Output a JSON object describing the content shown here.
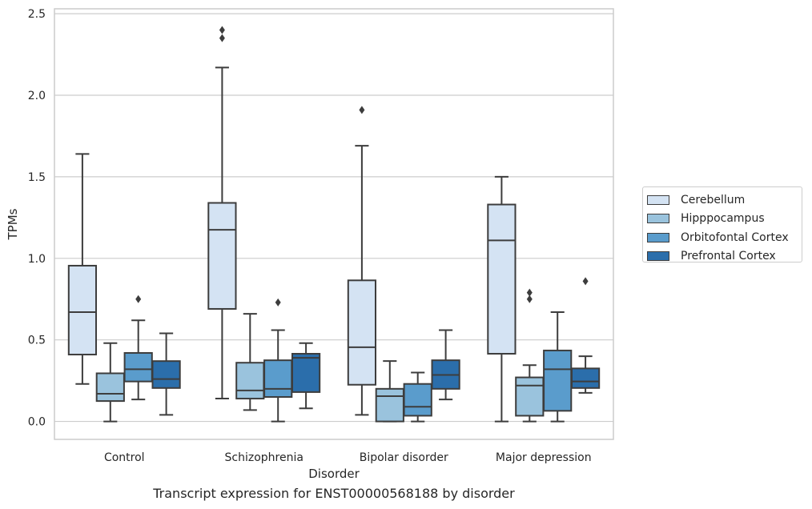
{
  "caption": "Transcript expression for ENST00000568188 by disorder",
  "chart_data": {
    "type": "boxplot",
    "title": "",
    "xlabel": "Disorder",
    "ylabel": "TPMs",
    "ylim": [
      -0.11,
      2.53
    ],
    "yticks": [
      0.0,
      0.5,
      1.0,
      1.5,
      2.0,
      2.5
    ],
    "ytick_labels": [
      "0.0",
      "0.5",
      "1.0",
      "1.5",
      "2.0",
      "2.5"
    ],
    "grid": "horizontal",
    "legend_position": "right",
    "categories": [
      "Control",
      "Schizophrenia",
      "Bipolar disorder",
      "Major depression"
    ],
    "series": [
      {
        "name": "Cerebellum",
        "color": "#d4e3f3",
        "boxes": [
          {
            "whislo": 0.23,
            "q1": 0.41,
            "med": 0.67,
            "q3": 0.955,
            "whishi": 1.64,
            "fliers": []
          },
          {
            "whislo": 0.14,
            "q1": 0.69,
            "med": 1.175,
            "q3": 1.34,
            "whishi": 2.17,
            "fliers": [
              2.35,
              2.4
            ]
          },
          {
            "whislo": 0.04,
            "q1": 0.225,
            "med": 0.455,
            "q3": 0.865,
            "whishi": 1.69,
            "fliers": [
              1.91
            ]
          },
          {
            "whislo": 0.0,
            "q1": 0.415,
            "med": 1.11,
            "q3": 1.33,
            "whishi": 1.5,
            "fliers": []
          }
        ]
      },
      {
        "name": "Hipppocampus",
        "color": "#9ac3dd",
        "boxes": [
          {
            "whislo": 0.0,
            "q1": 0.125,
            "med": 0.17,
            "q3": 0.295,
            "whishi": 0.48,
            "fliers": []
          },
          {
            "whislo": 0.07,
            "q1": 0.14,
            "med": 0.19,
            "q3": 0.36,
            "whishi": 0.66,
            "fliers": []
          },
          {
            "whislo": 0.0,
            "q1": 0.0,
            "med": 0.155,
            "q3": 0.2,
            "whishi": 0.37,
            "fliers": []
          },
          {
            "whislo": 0.0,
            "q1": 0.035,
            "med": 0.22,
            "q3": 0.27,
            "whishi": 0.345,
            "fliers": [
              0.75,
              0.79
            ]
          }
        ]
      },
      {
        "name": "Orbitofontal Cortex",
        "color": "#5a9ccc",
        "boxes": [
          {
            "whislo": 0.135,
            "q1": 0.245,
            "med": 0.32,
            "q3": 0.42,
            "whishi": 0.62,
            "fliers": [
              0.75
            ]
          },
          {
            "whislo": 0.0,
            "q1": 0.15,
            "med": 0.2,
            "q3": 0.375,
            "whishi": 0.56,
            "fliers": [
              0.73
            ]
          },
          {
            "whislo": 0.0,
            "q1": 0.035,
            "med": 0.09,
            "q3": 0.23,
            "whishi": 0.3,
            "fliers": []
          },
          {
            "whislo": 0.0,
            "q1": 0.065,
            "med": 0.32,
            "q3": 0.435,
            "whishi": 0.67,
            "fliers": []
          }
        ]
      },
      {
        "name": "Prefrontal Cortex",
        "color": "#2b6eab",
        "boxes": [
          {
            "whislo": 0.04,
            "q1": 0.205,
            "med": 0.26,
            "q3": 0.37,
            "whishi": 0.54,
            "fliers": []
          },
          {
            "whislo": 0.08,
            "q1": 0.18,
            "med": 0.39,
            "q3": 0.415,
            "whishi": 0.48,
            "fliers": []
          },
          {
            "whislo": 0.135,
            "q1": 0.2,
            "med": 0.285,
            "q3": 0.375,
            "whishi": 0.56,
            "fliers": []
          },
          {
            "whislo": 0.175,
            "q1": 0.205,
            "med": 0.245,
            "q3": 0.325,
            "whishi": 0.4,
            "fliers": [
              0.86
            ]
          }
        ]
      }
    ]
  }
}
